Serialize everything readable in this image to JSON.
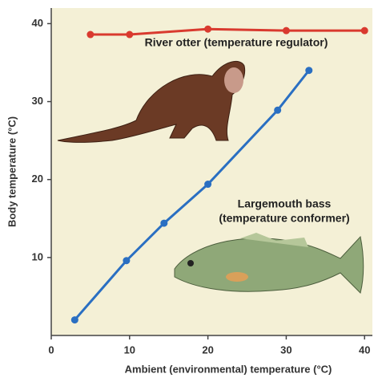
{
  "chart_data": {
    "type": "line",
    "x_label": "Ambient (environmental) temperature (°C)",
    "y_label": "Body temperature (°C)",
    "xlim": [
      0,
      41
    ],
    "ylim": [
      0,
      42
    ],
    "xticks": [
      0,
      10,
      20,
      30,
      40
    ],
    "yticks": [
      10,
      20,
      30,
      40
    ],
    "grid": false,
    "series": [
      {
        "color": "#d93a2f",
        "x": [
          5,
          10,
          20,
          30,
          40
        ],
        "values": [
          38.6,
          38.6,
          39.3,
          39.1,
          39.1
        ]
      },
      {
        "color": "#2a6fc2",
        "x": [
          3,
          9.6,
          14.4,
          20,
          28.9,
          32.9
        ],
        "values": [
          2,
          9.6,
          14.4,
          19.4,
          28.9,
          34
        ]
      }
    ],
    "annotations": [
      {
        "lines": [
          "River otter (temperature regulator)"
        ]
      },
      {
        "lines": [
          "Largemouth bass",
          "(temperature conformer)"
        ]
      }
    ]
  }
}
